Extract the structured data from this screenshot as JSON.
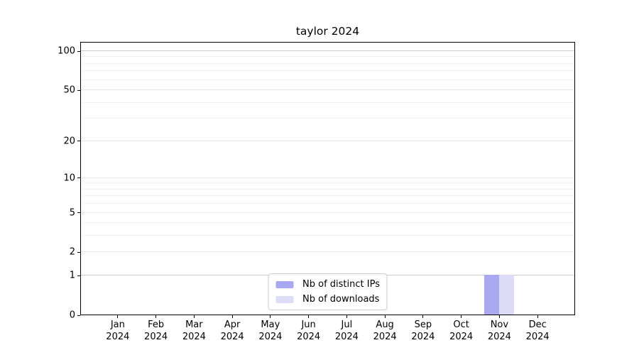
{
  "title": "taylor 2024",
  "chart_data": {
    "type": "bar",
    "title": "taylor 2024",
    "xlabel": "",
    "ylabel": "",
    "categories": [
      "Jan 2024",
      "Feb 2024",
      "Mar 2024",
      "Apr 2024",
      "May 2024",
      "Jun 2024",
      "Jul 2024",
      "Aug 2024",
      "Sep 2024",
      "Oct 2024",
      "Nov 2024",
      "Dec 2024"
    ],
    "series": [
      {
        "name": "Nb of distinct IPs",
        "color": "#a9a9f2",
        "values": [
          0,
          0,
          0,
          0,
          0,
          0,
          0,
          0,
          0,
          0,
          1,
          0
        ]
      },
      {
        "name": "Nb of downloads",
        "color": "#dcdcf8",
        "values": [
          0,
          0,
          0,
          0,
          0,
          0,
          0,
          0,
          0,
          0,
          1,
          0
        ]
      }
    ],
    "yscale": "log1p",
    "ylim": [
      0,
      115
    ],
    "y_major_ticks": [
      0,
      1,
      2,
      5,
      10,
      20,
      50,
      100
    ],
    "y_minor_gridlines": [
      3,
      4,
      6,
      7,
      8,
      9,
      30,
      40,
      60,
      70,
      80,
      90
    ],
    "grid": "horizontal",
    "legend_position": "lower center"
  }
}
